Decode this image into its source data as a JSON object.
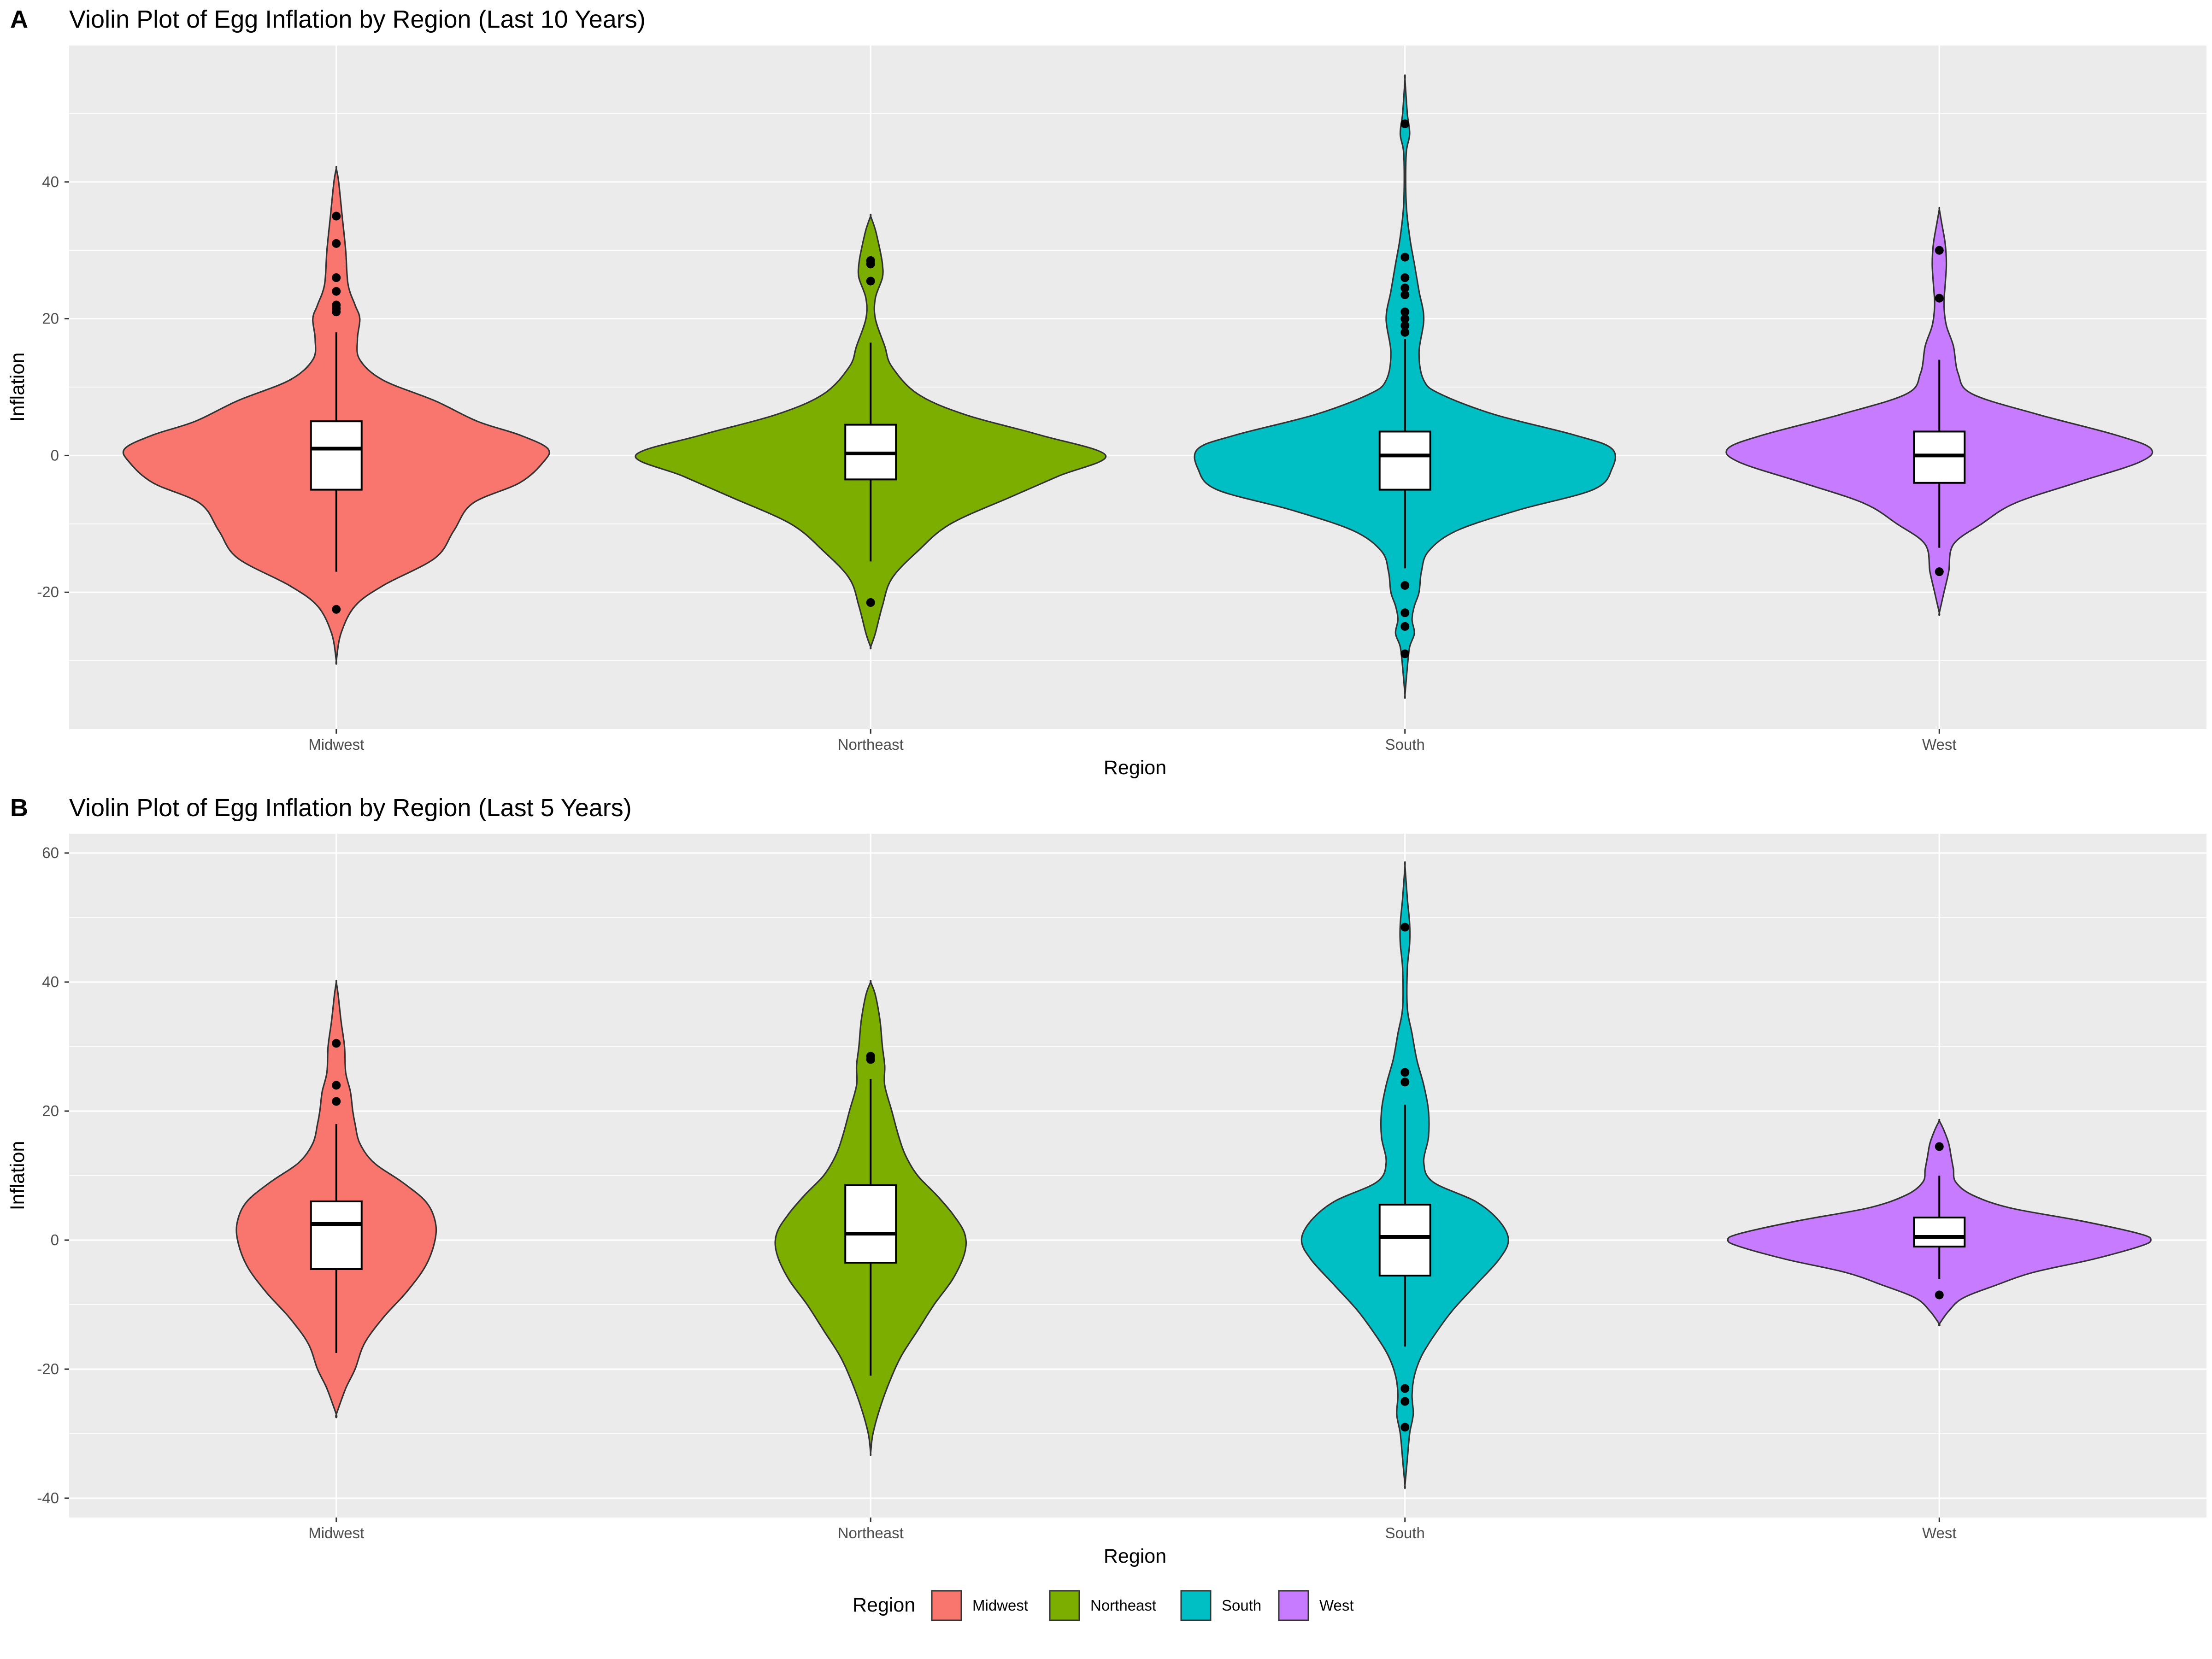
{
  "figure": {
    "legend": {
      "title": "Region",
      "position": "bottom",
      "items": [
        {
          "label": "Midwest",
          "color": "#F8766D"
        },
        {
          "label": "Northeast",
          "color": "#7CAE00"
        },
        {
          "label": "South",
          "color": "#00BFC4"
        },
        {
          "label": "West",
          "color": "#C77CFF"
        }
      ]
    },
    "colors": {
      "panel_background": "#EBEBEB",
      "grid": "#FFFFFF",
      "outline": "#333333",
      "box_fill": "#FFFFFF",
      "outlier": "#000000"
    }
  },
  "chart_data": [
    {
      "type": "violin",
      "tag": "A",
      "title": "Violin Plot of Egg Inflation by Region (Last 10 Years)",
      "xlabel": "Region",
      "ylabel": "Inflation",
      "categories": [
        "Midwest",
        "Northeast",
        "South",
        "West"
      ],
      "ylim": [
        -40,
        60
      ],
      "yticks": [
        -20,
        0,
        20,
        40
      ],
      "grid": true,
      "violins": [
        {
          "name": "Midwest",
          "color": "#F8766D",
          "profile": [
            [
              -30,
              0.0
            ],
            [
              -26,
              0.02
            ],
            [
              -22,
              0.08
            ],
            [
              -19,
              0.2
            ],
            [
              -15,
              0.42
            ],
            [
              -11,
              0.5
            ],
            [
              -7,
              0.58
            ],
            [
              -4,
              0.78
            ],
            [
              -1,
              0.88
            ],
            [
              1,
              0.9
            ],
            [
              3,
              0.78
            ],
            [
              5,
              0.6
            ],
            [
              8,
              0.42
            ],
            [
              11,
              0.2
            ],
            [
              14,
              0.1
            ],
            [
              17,
              0.09
            ],
            [
              20,
              0.1
            ],
            [
              22,
              0.08
            ],
            [
              25,
              0.05
            ],
            [
              30,
              0.04
            ],
            [
              35,
              0.025
            ],
            [
              40,
              0.01
            ],
            [
              42,
              0.0
            ]
          ],
          "box": {
            "q1": -5,
            "median": 1,
            "q3": 5,
            "whisker_low": -17,
            "whisker_high": 18
          },
          "outliers": [
            35,
            31,
            26,
            24,
            22,
            21.5,
            21,
            -22.5
          ]
        },
        {
          "name": "Northeast",
          "color": "#7CAE00",
          "profile": [
            [
              -28,
              0.0
            ],
            [
              -26,
              0.02
            ],
            [
              -22,
              0.05
            ],
            [
              -18,
              0.09
            ],
            [
              -14,
              0.2
            ],
            [
              -10,
              0.34
            ],
            [
              -6,
              0.6
            ],
            [
              -3,
              0.8
            ],
            [
              0,
              1.0
            ],
            [
              3,
              0.72
            ],
            [
              6,
              0.4
            ],
            [
              9,
              0.2
            ],
            [
              13,
              0.09
            ],
            [
              16,
              0.06
            ],
            [
              20,
              0.02
            ],
            [
              23,
              0.02
            ],
            [
              26,
              0.05
            ],
            [
              28,
              0.05
            ],
            [
              30,
              0.04
            ],
            [
              33,
              0.02
            ],
            [
              35,
              0.0
            ]
          ],
          "box": {
            "q1": -3.5,
            "median": 0.3,
            "q3": 4.5,
            "whisker_low": -15.5,
            "whisker_high": 16.5
          },
          "outliers": [
            28.5,
            28,
            25.5,
            -21.5
          ]
        },
        {
          "name": "South",
          "color": "#00BFC4",
          "profile": [
            [
              -35,
              0.0
            ],
            [
              -31,
              0.01
            ],
            [
              -28,
              0.02
            ],
            [
              -26,
              0.04
            ],
            [
              -24,
              0.03
            ],
            [
              -22,
              0.04
            ],
            [
              -20,
              0.06
            ],
            [
              -17,
              0.07
            ],
            [
              -14,
              0.1
            ],
            [
              -11,
              0.22
            ],
            [
              -8,
              0.48
            ],
            [
              -5,
              0.8
            ],
            [
              -2,
              0.88
            ],
            [
              1,
              0.88
            ],
            [
              3,
              0.72
            ],
            [
              6,
              0.38
            ],
            [
              9,
              0.15
            ],
            [
              11,
              0.08
            ],
            [
              15,
              0.06
            ],
            [
              20,
              0.08
            ],
            [
              24,
              0.06
            ],
            [
              28,
              0.04
            ],
            [
              32,
              0.02
            ],
            [
              37,
              0.005
            ],
            [
              44,
              0.005
            ],
            [
              47,
              0.02
            ],
            [
              50,
              0.01
            ],
            [
              55,
              0.0
            ]
          ],
          "box": {
            "q1": -5,
            "median": 0,
            "q3": 3.5,
            "whisker_low": -16.5,
            "whisker_high": 17
          },
          "outliers": [
            48.5,
            29,
            26,
            24.5,
            23.5,
            21,
            20,
            19,
            18,
            -19,
            -23,
            -25,
            -29
          ]
        },
        {
          "name": "West",
          "color": "#C77CFF",
          "profile": [
            [
              -23,
              0.0
            ],
            [
              -20,
              0.02
            ],
            [
              -17,
              0.04
            ],
            [
              -13,
              0.06
            ],
            [
              -10,
              0.18
            ],
            [
              -7,
              0.32
            ],
            [
              -4,
              0.58
            ],
            [
              -1,
              0.85
            ],
            [
              1,
              0.9
            ],
            [
              3,
              0.75
            ],
            [
              6,
              0.42
            ],
            [
              9,
              0.14
            ],
            [
              12,
              0.08
            ],
            [
              16,
              0.06
            ],
            [
              19,
              0.03
            ],
            [
              22,
              0.02
            ],
            [
              25,
              0.025
            ],
            [
              28,
              0.03
            ],
            [
              31,
              0.025
            ],
            [
              34,
              0.01
            ],
            [
              36,
              0.0
            ]
          ],
          "box": {
            "q1": -4,
            "median": 0,
            "q3": 3.5,
            "whisker_low": -13.5,
            "whisker_high": 14
          },
          "outliers": [
            30,
            23,
            -17
          ]
        }
      ]
    },
    {
      "type": "violin",
      "tag": "B",
      "title": "Violin Plot of Egg Inflation by Region (Last 5 Years)",
      "xlabel": "Region",
      "ylabel": "Inflation",
      "categories": [
        "Midwest",
        "Northeast",
        "South",
        "West"
      ],
      "ylim": [
        -43,
        63
      ],
      "yticks": [
        -40,
        -20,
        0,
        20,
        40,
        60
      ],
      "grid": true,
      "violins": [
        {
          "name": "Midwest",
          "color": "#F8766D",
          "profile": [
            [
              -27,
              0.0
            ],
            [
              -23,
              0.04
            ],
            [
              -20,
              0.08
            ],
            [
              -16,
              0.12
            ],
            [
              -12,
              0.2
            ],
            [
              -8,
              0.3
            ],
            [
              -4,
              0.38
            ],
            [
              0,
              0.42
            ],
            [
              3,
              0.42
            ],
            [
              6,
              0.38
            ],
            [
              9,
              0.28
            ],
            [
              12,
              0.16
            ],
            [
              15,
              0.1
            ],
            [
              18,
              0.08
            ],
            [
              20,
              0.07
            ],
            [
              23,
              0.06
            ],
            [
              26,
              0.04
            ],
            [
              30,
              0.035
            ],
            [
              34,
              0.02
            ],
            [
              38,
              0.008
            ],
            [
              40,
              0.0
            ]
          ],
          "box": {
            "q1": -4.5,
            "median": 2.5,
            "q3": 6,
            "whisker_low": -17.5,
            "whisker_high": 18
          },
          "outliers": [
            30.5,
            24,
            21.5
          ]
        },
        {
          "name": "Northeast",
          "color": "#7CAE00",
          "profile": [
            [
              -33,
              0.0
            ],
            [
              -30,
              0.01
            ],
            [
              -26,
              0.04
            ],
            [
              -22,
              0.08
            ],
            [
              -18,
              0.13
            ],
            [
              -14,
              0.2
            ],
            [
              -10,
              0.27
            ],
            [
              -6,
              0.35
            ],
            [
              -2,
              0.4
            ],
            [
              1,
              0.4
            ],
            [
              4,
              0.35
            ],
            [
              7,
              0.28
            ],
            [
              10,
              0.2
            ],
            [
              13,
              0.15
            ],
            [
              16,
              0.12
            ],
            [
              20,
              0.09
            ],
            [
              24,
              0.06
            ],
            [
              27,
              0.06
            ],
            [
              30,
              0.05
            ],
            [
              34,
              0.04
            ],
            [
              38,
              0.02
            ],
            [
              40,
              0.0
            ]
          ],
          "box": {
            "q1": -3.5,
            "median": 1,
            "q3": 8.5,
            "whisker_low": -21,
            "whisker_high": 25
          },
          "outliers": [
            28.5,
            28
          ]
        },
        {
          "name": "South",
          "color": "#00BFC4",
          "profile": [
            [
              -38,
              0.0
            ],
            [
              -34,
              0.01
            ],
            [
              -30,
              0.02
            ],
            [
              -27,
              0.035
            ],
            [
              -24,
              0.03
            ],
            [
              -21,
              0.04
            ],
            [
              -18,
              0.07
            ],
            [
              -15,
              0.12
            ],
            [
              -11,
              0.2
            ],
            [
              -7,
              0.3
            ],
            [
              -3,
              0.4
            ],
            [
              0,
              0.44
            ],
            [
              3,
              0.4
            ],
            [
              6,
              0.3
            ],
            [
              9,
              0.12
            ],
            [
              12,
              0.08
            ],
            [
              16,
              0.1
            ],
            [
              20,
              0.1
            ],
            [
              24,
              0.08
            ],
            [
              28,
              0.05
            ],
            [
              32,
              0.03
            ],
            [
              36,
              0.01
            ],
            [
              42,
              0.01
            ],
            [
              46,
              0.02
            ],
            [
              49,
              0.02
            ],
            [
              53,
              0.01
            ],
            [
              58,
              0.0
            ]
          ],
          "box": {
            "q1": -5.5,
            "median": 0.5,
            "q3": 5.5,
            "whisker_low": -16.5,
            "whisker_high": 21
          },
          "outliers": [
            48.5,
            26,
            24.5,
            -23,
            -25,
            -29
          ]
        },
        {
          "name": "West",
          "color": "#C77CFF",
          "profile": [
            [
              -13,
              0.0
            ],
            [
              -11,
              0.04
            ],
            [
              -9,
              0.1
            ],
            [
              -7,
              0.24
            ],
            [
              -5,
              0.4
            ],
            [
              -3,
              0.65
            ],
            [
              -1,
              0.85
            ],
            [
              0,
              0.9
            ],
            [
              1,
              0.85
            ],
            [
              3,
              0.6
            ],
            [
              5,
              0.3
            ],
            [
              7,
              0.14
            ],
            [
              9,
              0.07
            ],
            [
              11,
              0.06
            ],
            [
              13,
              0.05
            ],
            [
              15,
              0.04
            ],
            [
              17,
              0.02
            ],
            [
              18.5,
              0.0
            ]
          ],
          "box": {
            "q1": -1,
            "median": 0.5,
            "q3": 3.5,
            "whisker_low": -6,
            "whisker_high": 10
          },
          "outliers": [
            14.5,
            -8.5
          ]
        }
      ]
    }
  ]
}
